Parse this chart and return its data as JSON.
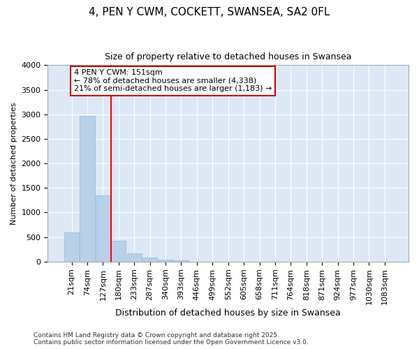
{
  "title1": "4, PEN Y CWM, COCKETT, SWANSEA, SA2 0FL",
  "title2": "Size of property relative to detached houses in Swansea",
  "xlabel": "Distribution of detached houses by size in Swansea",
  "ylabel": "Number of detached properties",
  "bar_labels": [
    "21sqm",
    "74sqm",
    "127sqm",
    "180sqm",
    "233sqm",
    "287sqm",
    "340sqm",
    "393sqm",
    "446sqm",
    "499sqm",
    "552sqm",
    "605sqm",
    "658sqm",
    "711sqm",
    "764sqm",
    "818sqm",
    "871sqm",
    "924sqm",
    "977sqm",
    "1030sqm",
    "1083sqm"
  ],
  "bar_values": [
    600,
    2970,
    1350,
    430,
    175,
    90,
    45,
    30,
    0,
    0,
    0,
    0,
    0,
    0,
    0,
    0,
    0,
    0,
    0,
    0,
    0
  ],
  "bar_color": "#b8d0e8",
  "bar_edge_color": "#9ab8d4",
  "vline_pos": 2.5,
  "vline_color": "red",
  "ylim": [
    0,
    4000
  ],
  "yticks": [
    0,
    500,
    1000,
    1500,
    2000,
    2500,
    3000,
    3500,
    4000
  ],
  "annotation_text": "4 PEN Y CWM: 151sqm\n← 78% of detached houses are smaller (4,338)\n21% of semi-detached houses are larger (1,183) →",
  "annotation_box_facecolor": "#ffffff",
  "annotation_box_edgecolor": "#cc0000",
  "footer_text": "Contains HM Land Registry data © Crown copyright and database right 2025.\nContains public sector information licensed under the Open Government Licence v3.0.",
  "bg_color": "#ffffff",
  "plot_bg_color": "#dce8f5",
  "grid_color": "#ffffff",
  "spine_color": "#aaaaaa",
  "title1_fontsize": 11,
  "title2_fontsize": 9,
  "ylabel_fontsize": 8,
  "xlabel_fontsize": 9,
  "tick_fontsize": 8,
  "annot_fontsize": 8
}
